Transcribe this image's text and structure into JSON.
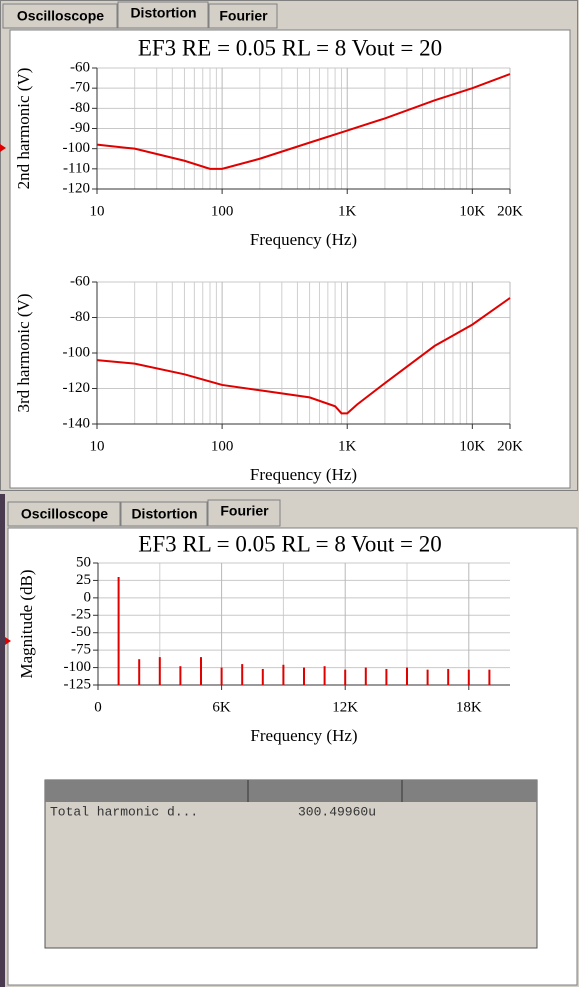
{
  "top_tabs": {
    "labels": [
      "Oscilloscope",
      "Distortion",
      "Fourier"
    ],
    "active": 1
  },
  "bottom_tabs": {
    "labels": [
      "Oscilloscope",
      "Distortion",
      "Fourier"
    ],
    "active": 2
  },
  "chart_data": [
    {
      "type": "line",
      "title": "EF3  RE = 0.05  RL = 8   Vout = 20",
      "y_label": "2nd harmonic (V)",
      "x_label": "Frequency (Hz)",
      "xscale": "log",
      "xlim": [
        10,
        20000
      ],
      "xticks": [
        10,
        100,
        {
          "value": 1000,
          "label": "1K"
        },
        {
          "value": 10000,
          "label": "10K"
        },
        {
          "value": 20000,
          "label": "20K"
        }
      ],
      "minor_xticks": [
        20,
        30,
        40,
        50,
        60,
        70,
        80,
        90,
        200,
        300,
        400,
        500,
        600,
        700,
        800,
        900,
        2000,
        3000,
        4000,
        5000,
        6000,
        7000,
        8000,
        9000
      ],
      "ylim": [
        -120,
        -60
      ],
      "yticks": [
        -120,
        -110,
        -100,
        -90,
        -80,
        -70,
        -60
      ],
      "grid": true,
      "series": [
        {
          "color": "#e00000",
          "x": [
            10,
            20,
            50,
            80,
            100,
            200,
            500,
            1000,
            2000,
            5000,
            10000,
            20000
          ],
          "values": [
            -98,
            -100,
            -106,
            -110,
            -110,
            -105,
            -97,
            -91,
            -85,
            -76,
            -70,
            -63
          ]
        }
      ]
    },
    {
      "type": "line",
      "y_label": "3rd harmonic (V)",
      "x_label": "Frequency (Hz)",
      "xscale": "log",
      "xlim": [
        10,
        20000
      ],
      "xticks": [
        10,
        100,
        {
          "value": 1000,
          "label": "1K"
        },
        {
          "value": 10000,
          "label": "10K"
        },
        {
          "value": 20000,
          "label": "20K"
        }
      ],
      "minor_xticks": [
        20,
        30,
        40,
        50,
        60,
        70,
        80,
        90,
        200,
        300,
        400,
        500,
        600,
        700,
        800,
        900,
        2000,
        3000,
        4000,
        5000,
        6000,
        7000,
        8000,
        9000
      ],
      "ylim": [
        -140,
        -60
      ],
      "yticks": [
        -140,
        -120,
        -100,
        -80,
        -60
      ],
      "grid": true,
      "series": [
        {
          "color": "#e00000",
          "x": [
            10,
            20,
            50,
            100,
            200,
            500,
            800,
            900,
            1000,
            1200,
            2000,
            5000,
            10000,
            20000
          ],
          "values": [
            -104,
            -106,
            -112,
            -118,
            -121,
            -125,
            -130,
            -134,
            -134,
            -129,
            -117,
            -96,
            -84,
            -69
          ]
        }
      ]
    },
    {
      "type": "bar",
      "title": "EF3  RL = 0.05  RL = 8  Vout = 20",
      "y_label": "Magnitude (dB)",
      "x_label": "Frequency (Hz)",
      "xscale": "linear",
      "xlim": [
        0,
        20000
      ],
      "xticks": [
        0,
        {
          "value": 6000,
          "label": "6K"
        },
        {
          "value": 12000,
          "label": "12K"
        },
        {
          "value": 18000,
          "label": "18K"
        }
      ],
      "minor_xticks": [
        3000,
        9000,
        15000
      ],
      "ylim": [
        -125,
        50
      ],
      "yticks": [
        -125,
        -100,
        -75,
        -50,
        -25,
        0,
        25,
        50
      ],
      "grid": true,
      "series": [
        {
          "color": "#e00000",
          "x": [
            1000,
            2000,
            3000,
            4000,
            5000,
            6000,
            7000,
            8000,
            9000,
            10000,
            11000,
            12000,
            13000,
            14000,
            15000,
            16000,
            17000,
            18000,
            19000
          ],
          "values": [
            30,
            -88,
            -85,
            -98,
            -85,
            -100,
            -95,
            -102,
            -96,
            -100,
            -98,
            -103,
            -100,
            -102,
            -100,
            -103,
            -102,
            -103,
            -103
          ]
        }
      ]
    }
  ],
  "table": {
    "rows": [
      [
        "Total harmonic d...",
        "300.49960u"
      ]
    ]
  }
}
